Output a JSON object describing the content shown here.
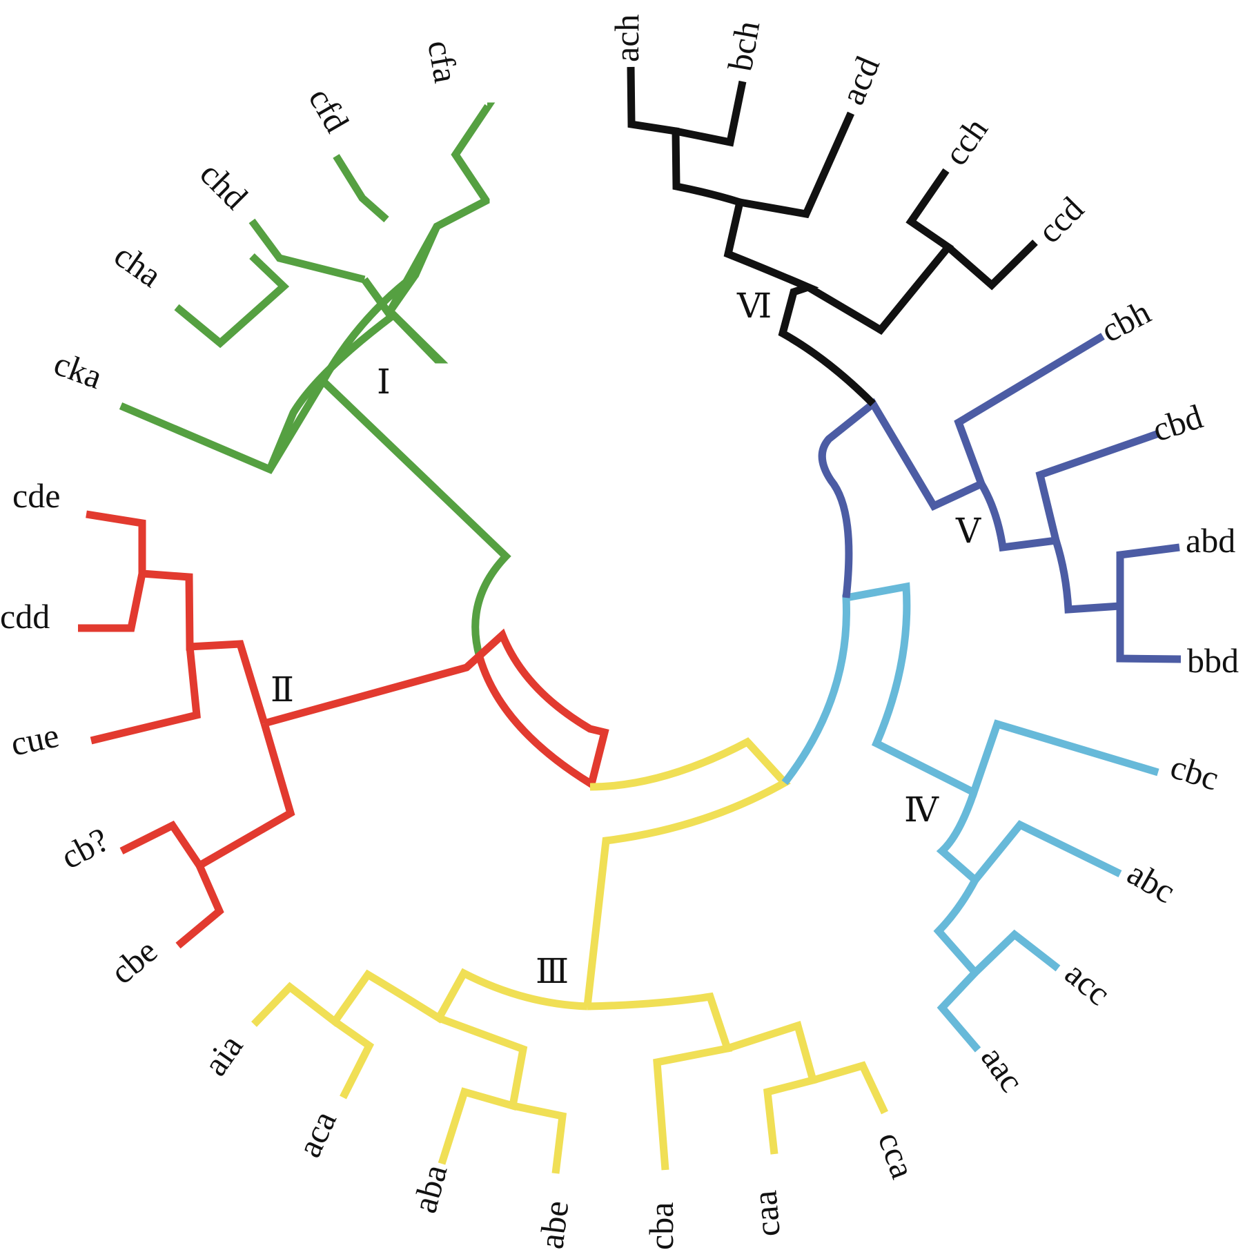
{
  "colors": {
    "I": "#55a041",
    "II": "#e23a2f",
    "III": "#f0df55",
    "IV": "#67b9d9",
    "V": "#4c5ca4",
    "VI": "#111111"
  },
  "clades": {
    "I": "Ⅰ",
    "II": "Ⅱ",
    "III": "Ⅲ",
    "IV": "Ⅳ",
    "V": "Ⅴ",
    "VI": "Ⅵ"
  },
  "leaves": {
    "ach": "ach",
    "bch": "bch",
    "acd": "acd",
    "cch": "cch",
    "ccd": "ccd",
    "cbh": "cbh",
    "cbd": "cbd",
    "abd": "abd",
    "bbd": "bbd",
    "cbc": "cbc",
    "abc": "abc",
    "acc": "acc",
    "aac": "aac",
    "cca": "cca",
    "caa": "caa",
    "cba": "cba",
    "abe": "abe",
    "aba": "aba",
    "aca": "aca",
    "aia": "aia",
    "cbe": "cbe",
    "cb_q": "cb?",
    "cue": "cue",
    "cdd": "cdd",
    "cde": "cde",
    "cka": "cka",
    "cha": "cha",
    "chd": "chd",
    "cfd": "cfd",
    "cfa": "cfa"
  }
}
